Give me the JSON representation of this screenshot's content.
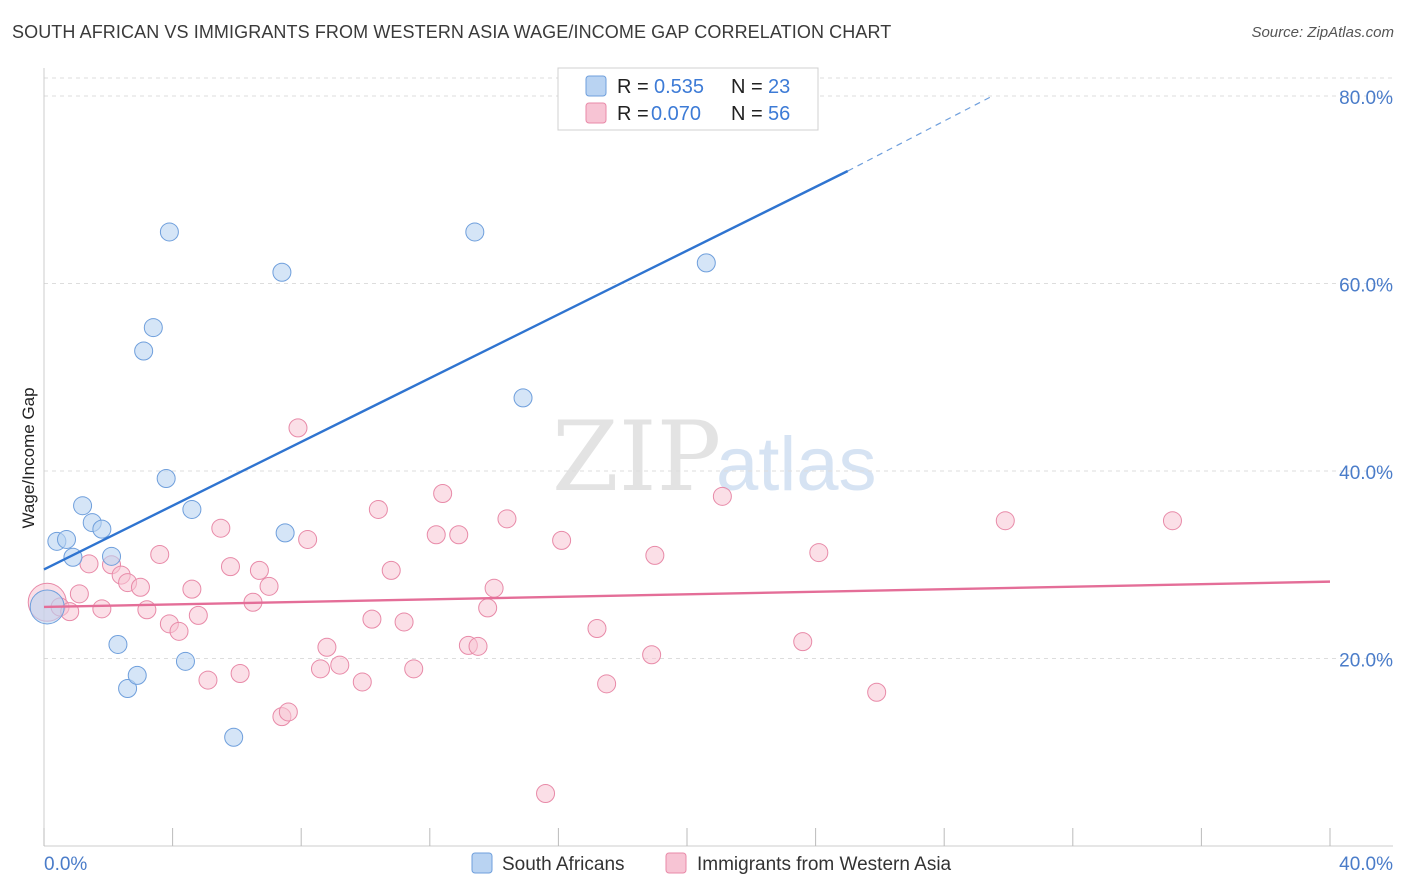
{
  "header": {
    "title": "SOUTH AFRICAN VS IMMIGRANTS FROM WESTERN ASIA WAGE/INCOME GAP CORRELATION CHART",
    "source": "Source: ZipAtlas.com"
  },
  "watermark": {
    "zip": "ZIP",
    "atlas": "atlas"
  },
  "colors": {
    "blue_fill": "#b9d3f2",
    "blue_stroke": "#6f9fdc",
    "blue_line": "#2f74d0",
    "pink_fill": "#f7c4d4",
    "pink_stroke": "#e88aa8",
    "pink_line": "#e46e98",
    "grid": "#dddddd",
    "axis_label": "#4a7cc9"
  },
  "legend": {
    "r_label": "R =",
    "n_label": "N =",
    "rows": [
      {
        "r": "0.535",
        "n": "23"
      },
      {
        "r": "0.070",
        "n": "56"
      }
    ]
  },
  "chart_data": {
    "type": "scatter",
    "title": "SOUTH AFRICAN VS IMMIGRANTS FROM WESTERN ASIA WAGE/INCOME GAP CORRELATION CHART",
    "ylabel": "Wage/Income Gap",
    "xlim": [
      0,
      40
    ],
    "ylim": [
      0,
      82
    ],
    "x_tick_labels": [
      "0.0%",
      "40.0%"
    ],
    "y_ticks": [
      20,
      40,
      60,
      80
    ],
    "y_tick_labels": [
      "20.0%",
      "40.0%",
      "60.0%",
      "80.0%"
    ],
    "grid": true,
    "legend_position": "top-center",
    "series": [
      {
        "name": "South Africans",
        "points": [
          [
            0.1,
            25.5
          ],
          [
            0.4,
            32.5
          ],
          [
            0.7,
            32.7
          ],
          [
            0.9,
            30.8
          ],
          [
            1.2,
            36.3
          ],
          [
            1.5,
            34.5
          ],
          [
            1.8,
            33.8
          ],
          [
            2.1,
            30.9
          ],
          [
            2.3,
            21.5
          ],
          [
            2.6,
            16.8
          ],
          [
            2.9,
            18.2
          ],
          [
            3.1,
            52.8
          ],
          [
            3.4,
            55.3
          ],
          [
            3.8,
            39.2
          ],
          [
            3.9,
            65.5
          ],
          [
            4.4,
            19.7
          ],
          [
            4.6,
            35.9
          ],
          [
            5.9,
            11.6
          ],
          [
            7.4,
            61.2
          ],
          [
            7.5,
            33.4
          ],
          [
            13.4,
            65.5
          ],
          [
            14.9,
            47.8
          ],
          [
            20.6,
            62.2
          ]
        ],
        "trend": {
          "x0": 0,
          "y0": 29.5,
          "x1": 25.0,
          "y1": 72.0,
          "dash_to_x": 29.5,
          "dash_to_y": 80.0
        }
      },
      {
        "name": "Immigrants from Western Asia",
        "points": [
          [
            0.1,
            26.0
          ],
          [
            0.5,
            25.5
          ],
          [
            0.8,
            25.0
          ],
          [
            1.1,
            26.9
          ],
          [
            1.4,
            30.1
          ],
          [
            1.8,
            25.3
          ],
          [
            2.1,
            30.0
          ],
          [
            2.4,
            28.9
          ],
          [
            2.6,
            28.1
          ],
          [
            3.0,
            27.6
          ],
          [
            3.2,
            25.2
          ],
          [
            3.6,
            31.1
          ],
          [
            3.9,
            23.7
          ],
          [
            4.2,
            22.9
          ],
          [
            4.6,
            27.4
          ],
          [
            4.8,
            24.6
          ],
          [
            5.1,
            17.7
          ],
          [
            5.5,
            33.9
          ],
          [
            5.8,
            29.8
          ],
          [
            6.1,
            18.4
          ],
          [
            6.5,
            26.0
          ],
          [
            6.7,
            29.4
          ],
          [
            7.0,
            27.7
          ],
          [
            7.4,
            13.8
          ],
          [
            7.6,
            14.3
          ],
          [
            7.9,
            44.6
          ],
          [
            8.2,
            32.7
          ],
          [
            8.6,
            18.9
          ],
          [
            8.8,
            21.2
          ],
          [
            9.2,
            19.3
          ],
          [
            9.9,
            17.5
          ],
          [
            10.2,
            24.2
          ],
          [
            10.4,
            35.9
          ],
          [
            10.8,
            29.4
          ],
          [
            11.2,
            23.9
          ],
          [
            11.5,
            18.9
          ],
          [
            12.2,
            33.2
          ],
          [
            12.4,
            37.6
          ],
          [
            12.9,
            33.2
          ],
          [
            13.2,
            21.4
          ],
          [
            13.5,
            21.3
          ],
          [
            13.8,
            25.4
          ],
          [
            14.0,
            27.5
          ],
          [
            14.4,
            34.9
          ],
          [
            15.6,
            5.6
          ],
          [
            16.1,
            32.6
          ],
          [
            17.2,
            23.2
          ],
          [
            17.5,
            17.3
          ],
          [
            18.9,
            20.4
          ],
          [
            19.0,
            31.0
          ],
          [
            21.1,
            37.3
          ],
          [
            23.6,
            21.8
          ],
          [
            24.1,
            31.3
          ],
          [
            25.9,
            16.4
          ],
          [
            29.9,
            34.7
          ],
          [
            35.1,
            34.7
          ]
        ],
        "trend": {
          "x0": 0,
          "y0": 25.5,
          "x1": 40,
          "y1": 28.2
        }
      }
    ]
  }
}
